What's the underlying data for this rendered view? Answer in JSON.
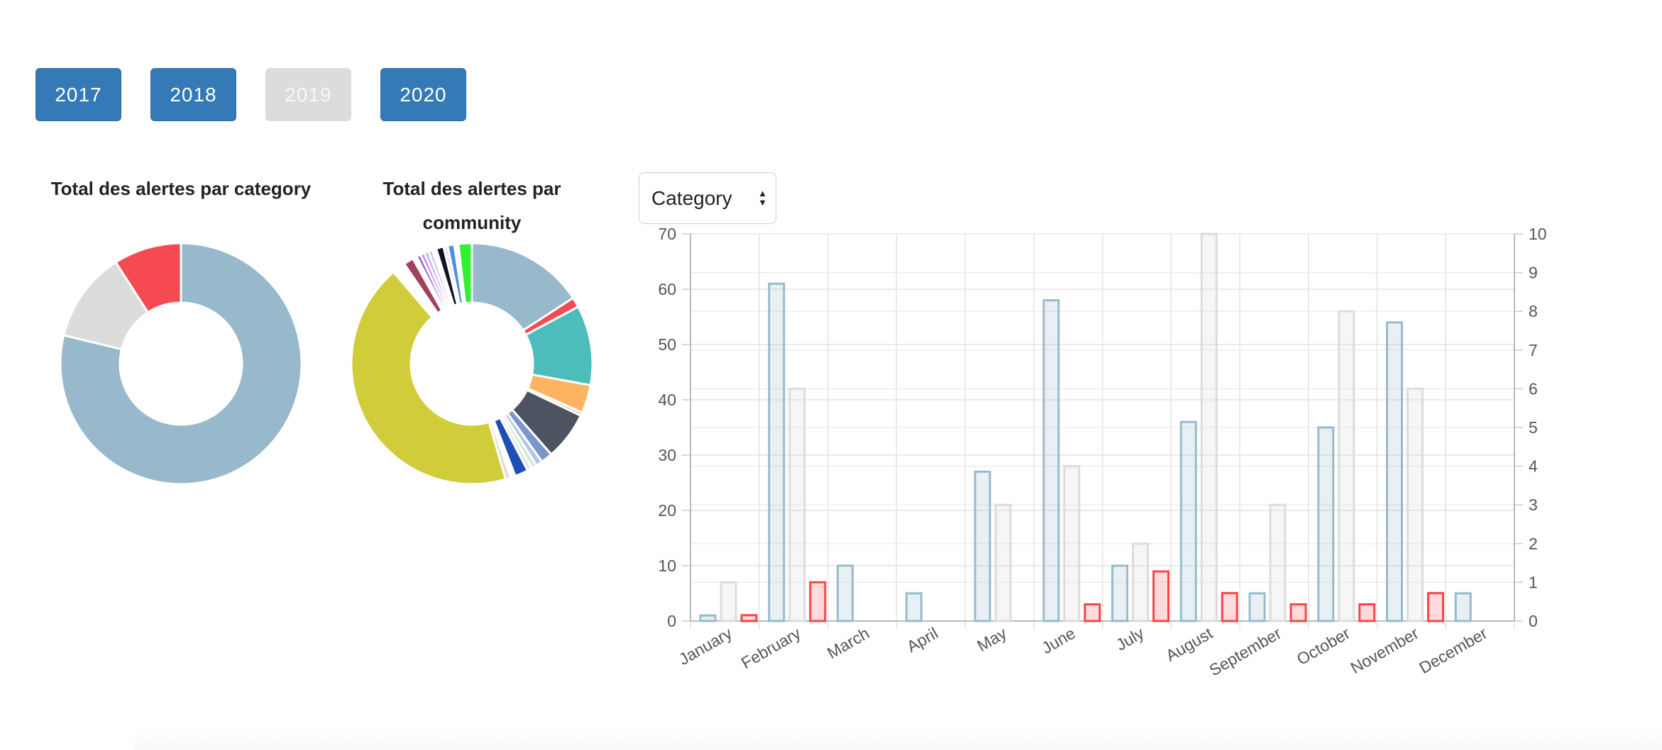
{
  "years": [
    {
      "label": "2017",
      "disabled": false
    },
    {
      "label": "2018",
      "disabled": false
    },
    {
      "label": "2019",
      "disabled": true
    },
    {
      "label": "2020",
      "disabled": false
    }
  ],
  "selector": {
    "value": "Category"
  },
  "chart_data": [
    {
      "type": "pie",
      "title": "Total des alertes par category",
      "donut": true,
      "slices": [
        {
          "value": 78,
          "color": "#97b9cb"
        },
        {
          "value": 12,
          "color": "#dcdcdc"
        },
        {
          "value": 9,
          "color": "#f64a53"
        }
      ]
    },
    {
      "type": "pie",
      "title": "Total des alertes par community",
      "donut": true,
      "slices": [
        {
          "value": 14.2,
          "color": "#97b9cb"
        },
        {
          "value": 1.2,
          "color": "#f64a53"
        },
        {
          "value": 9.6,
          "color": "#4dbdbc"
        },
        {
          "value": 3.4,
          "color": "#fdb462"
        },
        {
          "value": 0.4,
          "color": "#cccccc"
        },
        {
          "value": 5.8,
          "color": "#4d5360"
        },
        {
          "value": 1.4,
          "color": "#7b96cc"
        },
        {
          "value": 0.8,
          "color": "#b5c6e8"
        },
        {
          "value": 0.6,
          "color": "#ccebc5"
        },
        {
          "value": 0.6,
          "color": "#e6e6e6"
        },
        {
          "value": 1.6,
          "color": "#1f4fb5"
        },
        {
          "value": 0.6,
          "color": "#ffffff"
        },
        {
          "value": 0.6,
          "color": "#dddddd"
        },
        {
          "value": 38.8,
          "color": "#d1cd3a"
        },
        {
          "value": 1.6,
          "color": "#ffffff"
        },
        {
          "value": 1.2,
          "color": "#a3415a"
        },
        {
          "value": 0.5,
          "color": "#ffffff"
        },
        {
          "value": 0.5,
          "color": "#9a5fcf"
        },
        {
          "value": 0.5,
          "color": "#c48ee6"
        },
        {
          "value": 0.5,
          "color": "#ccaaff"
        },
        {
          "value": 0.5,
          "color": "#c7d0de"
        },
        {
          "value": 0.5,
          "color": "#ffffff"
        },
        {
          "value": 0.9,
          "color": "#111122"
        },
        {
          "value": 0.5,
          "color": "#e8e8e8"
        },
        {
          "value": 0.8,
          "color": "#4a90e2"
        },
        {
          "value": 0.5,
          "color": "#ffffff"
        },
        {
          "value": 1.6,
          "color": "#33ee33"
        }
      ]
    },
    {
      "type": "bar",
      "categories": [
        "January",
        "February",
        "March",
        "April",
        "May",
        "June",
        "July",
        "August",
        "September",
        "October",
        "November",
        "December"
      ],
      "series": [
        {
          "axis": "left",
          "values": [
            1,
            61,
            10,
            5,
            27,
            58,
            10,
            36,
            5,
            35,
            54,
            5
          ],
          "fill": "rgba(151,187,205,0.22)",
          "stroke": "#97bbcd"
        },
        {
          "axis": "left",
          "values": [
            7,
            42,
            0,
            0,
            21,
            28,
            14,
            70,
            21,
            56,
            42,
            0
          ],
          "fill": "rgba(220,220,220,0.25)",
          "stroke": "#dcdcdc"
        },
        {
          "axis": "right",
          "values": [
            0.15,
            1.0,
            0,
            0,
            0,
            0.43,
            1.28,
            0.72,
            0.43,
            0.43,
            0.72,
            0
          ],
          "fill": "rgba(247,70,74,0.2)",
          "stroke": "#f7464a"
        }
      ],
      "yticks": [
        "0",
        "10",
        "20",
        "30",
        "40",
        "50",
        "60",
        "70"
      ],
      "y2ticks": [
        "0",
        "1",
        "2",
        "3",
        "4",
        "5",
        "6",
        "7",
        "8",
        "9",
        "10"
      ],
      "ylim": [
        0,
        70
      ],
      "y2lim": [
        0,
        10
      ],
      "grid": true
    }
  ]
}
